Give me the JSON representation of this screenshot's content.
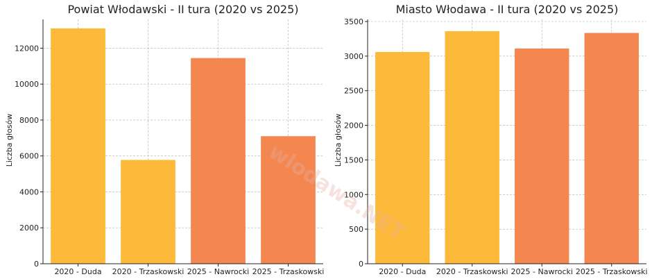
{
  "chart_data": [
    {
      "type": "bar",
      "title": "Powiat Włodawski - II tura (2020 vs 2025)",
      "xlabel": "",
      "ylabel": "Liczba głosów",
      "categories": [
        "2020 - Duda",
        "2020 - Trzaskowski",
        "2025 - Nawrocki",
        "2025 - Trzaskowski"
      ],
      "values": [
        13100,
        5780,
        11450,
        7100
      ],
      "colors": [
        "#FDBA3A",
        "#FDBA3A",
        "#F4874F",
        "#F4874F"
      ],
      "ylim": [
        0,
        13600
      ],
      "yticks": [
        0,
        2000,
        4000,
        6000,
        8000,
        10000,
        12000
      ],
      "grid": true
    },
    {
      "type": "bar",
      "title": "Miasto Włodawa - II tura (2020 vs 2025)",
      "xlabel": "",
      "ylabel": "Liczba głosów",
      "categories": [
        "2020 - Duda",
        "2020 - Trzaskowski",
        "2025 - Nawrocki",
        "2025 - Trzaskowski"
      ],
      "values": [
        3060,
        3360,
        3110,
        3335
      ],
      "colors": [
        "#FDBA3A",
        "#FDBA3A",
        "#F4874F",
        "#F4874F"
      ],
      "ylim": [
        0,
        3530
      ],
      "yticks": [
        0,
        500,
        1000,
        1500,
        2000,
        2500,
        3000,
        3500
      ],
      "grid": true
    }
  ],
  "watermark": "wlodawa.NET"
}
